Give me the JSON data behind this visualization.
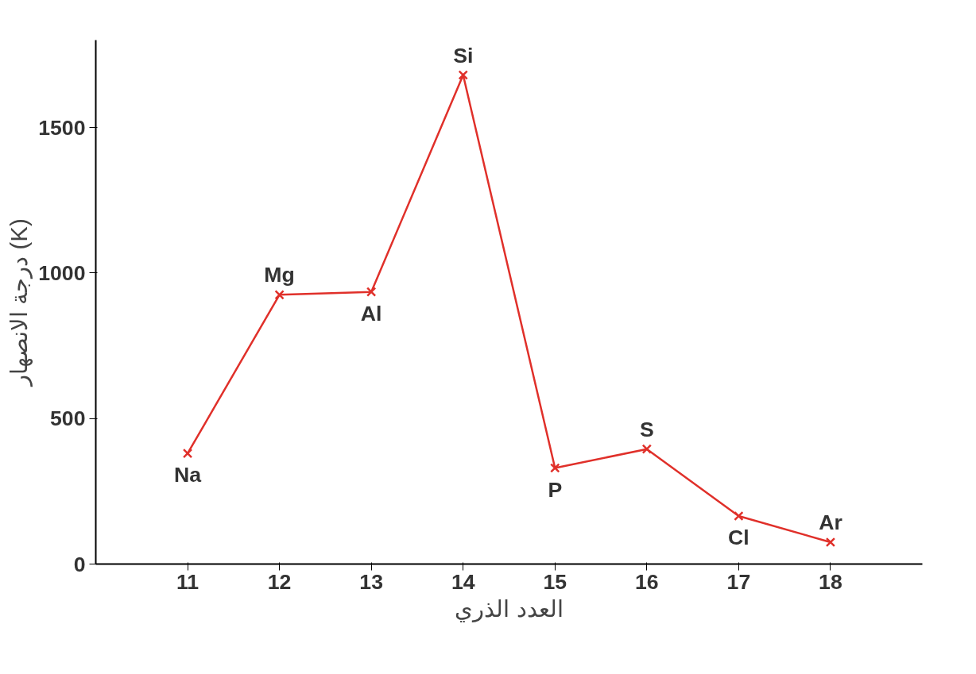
{
  "chart_data": {
    "type": "line",
    "xlabel": "العدد الذري",
    "ylabel": "درجة الانصهار (K)",
    "x": [
      11,
      12,
      13,
      14,
      15,
      16,
      17,
      18
    ],
    "series": [
      {
        "color": "#e0302a",
        "values": [
          380,
          925,
          935,
          1680,
          330,
          395,
          165,
          75
        ]
      }
    ],
    "xlim": [
      10,
      19
    ],
    "xticks": [
      11,
      12,
      13,
      14,
      15,
      16,
      17,
      18
    ],
    "ylim": [
      0,
      1800
    ],
    "yticks": [
      0,
      500,
      1000,
      1500
    ],
    "grid": false,
    "marker": "cross",
    "line_style": "solid",
    "annotations": [
      {
        "text": "Na",
        "x": 11,
        "y": 380
      },
      {
        "text": "Mg",
        "x": 12,
        "y": 925
      },
      {
        "text": "Al",
        "x": 13,
        "y": 935
      },
      {
        "text": "Si",
        "x": 14,
        "y": 1680
      },
      {
        "text": "P",
        "x": 15,
        "y": 330
      },
      {
        "text": "S",
        "x": 16,
        "y": 395
      },
      {
        "text": "Cl",
        "x": 17,
        "y": 165
      },
      {
        "text": "Ar",
        "x": 18,
        "y": 75
      }
    ]
  }
}
